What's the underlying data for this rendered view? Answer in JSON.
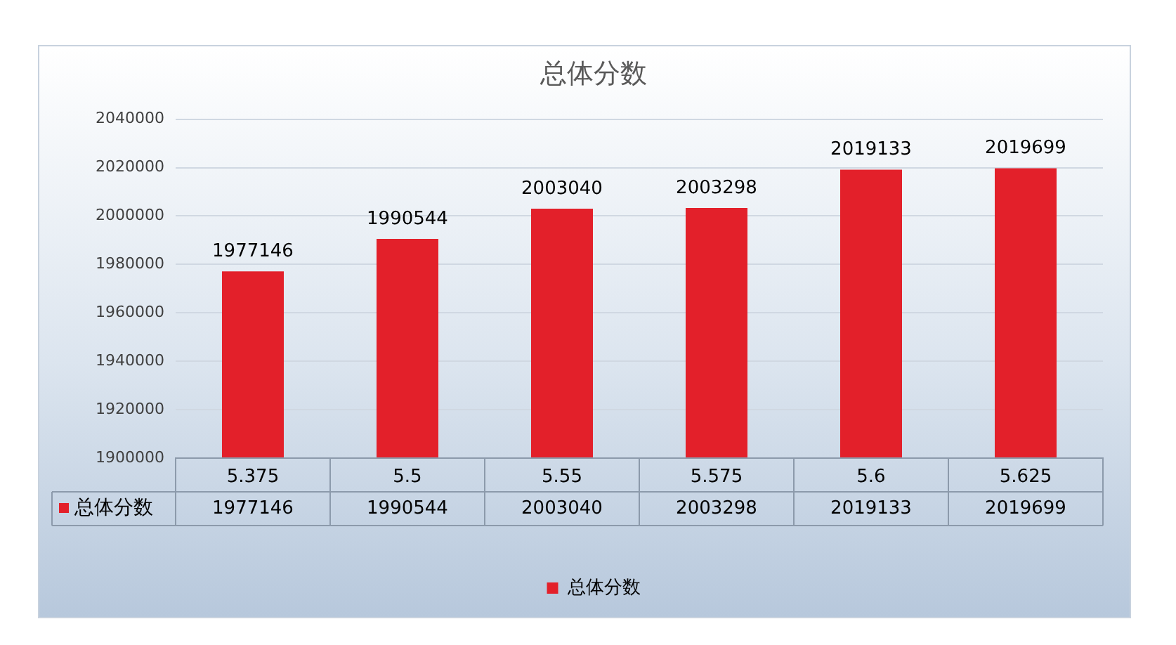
{
  "chart_data": {
    "type": "bar",
    "title": "总体分数",
    "categories": [
      "5.375",
      "5.5",
      "5.55",
      "5.575",
      "5.6",
      "5.625"
    ],
    "series": [
      {
        "name": "总体分数",
        "color": "#e3202a",
        "values": [
          1977146,
          1990544,
          2003040,
          2003298,
          2019133,
          2019699
        ]
      }
    ],
    "annotations": [
      {
        "text": "1977146",
        "x": "5.375",
        "y": 1977146
      },
      {
        "text": "1990544",
        "x": "5.5",
        "y": 1990544
      },
      {
        "text": "2003040",
        "x": "5.55",
        "y": 2003040
      },
      {
        "text": "2003298",
        "x": "5.575",
        "y": 2003298
      },
      {
        "text": "2019133",
        "x": "5.6",
        "y": 2019133
      },
      {
        "text": "2019699",
        "x": "5.625",
        "y": 2019699
      }
    ],
    "ylim": [
      1900000,
      2040000
    ],
    "yticks": [
      1900000,
      1920000,
      1940000,
      1960000,
      1980000,
      2000000,
      2020000,
      2040000
    ],
    "grid": "y",
    "legend": "bottom",
    "data_labels": true
  }
}
